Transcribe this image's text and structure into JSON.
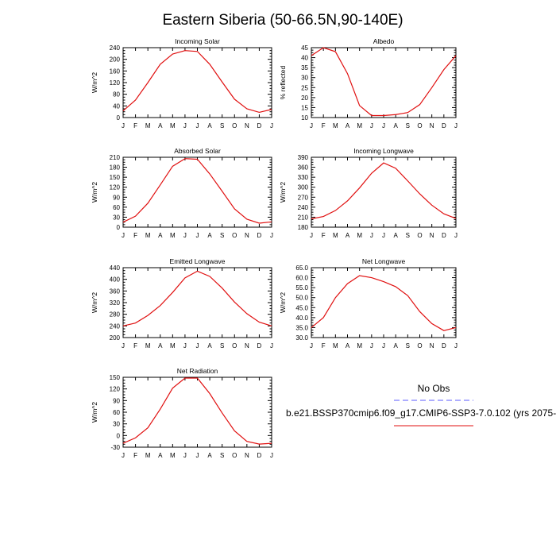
{
  "figure": {
    "title": "Eastern Siberia (50-66.5N,90-140E)"
  },
  "legend": {
    "items": [
      {
        "label": "No Obs",
        "color": "#5b5bff",
        "style": "dashed"
      },
      {
        "label": "b.e21.BSSP370cmip6.f09_g17.CMIP6-SSP3-7.0.102 (yrs 2075-",
        "color": "#e01010",
        "style": "solid"
      }
    ]
  },
  "colors": {
    "model_line": "#e01010",
    "axis": "#000000"
  },
  "chart_data": [
    {
      "type": "line",
      "title": "Incoming Solar",
      "ylabel": "W/m^2",
      "categories": [
        "J",
        "F",
        "M",
        "A",
        "M",
        "J",
        "J",
        "A",
        "S",
        "O",
        "N",
        "D",
        "J"
      ],
      "ylim": [
        0,
        240
      ],
      "yticks": [
        "0",
        "40",
        "80",
        "120",
        "160",
        "200",
        "240"
      ],
      "series": [
        {
          "values": [
            23,
            60,
            120,
            183,
            218,
            230,
            227,
            183,
            122,
            63,
            30,
            18,
            28
          ]
        }
      ]
    },
    {
      "type": "line",
      "title": "Albedo",
      "ylabel": "% reflected",
      "categories": [
        "J",
        "F",
        "M",
        "A",
        "M",
        "J",
        "J",
        "A",
        "S",
        "O",
        "N",
        "D",
        "J"
      ],
      "ylim": [
        10,
        45
      ],
      "yticks": [
        "10",
        "15",
        "20",
        "25",
        "30",
        "35",
        "40",
        "45"
      ],
      "series": [
        {
          "values": [
            41,
            45,
            43,
            32,
            16,
            11,
            11,
            11.5,
            12.5,
            16.5,
            25,
            34,
            41
          ]
        }
      ]
    },
    {
      "type": "line",
      "title": "Absorbed Solar",
      "ylabel": "W/m^2",
      "categories": [
        "J",
        "F",
        "M",
        "A",
        "M",
        "J",
        "J",
        "A",
        "S",
        "O",
        "N",
        "D",
        "J"
      ],
      "ylim": [
        0,
        210
      ],
      "yticks": [
        "0",
        "30",
        "60",
        "90",
        "120",
        "150",
        "180",
        "210"
      ],
      "series": [
        {
          "values": [
            15,
            33,
            72,
            127,
            183,
            206,
            204,
            160,
            108,
            55,
            24,
            12,
            16
          ]
        }
      ]
    },
    {
      "type": "line",
      "title": "Incoming Longwave",
      "ylabel": "W/m^2",
      "categories": [
        "J",
        "F",
        "M",
        "A",
        "M",
        "J",
        "J",
        "A",
        "S",
        "O",
        "N",
        "D",
        "J"
      ],
      "ylim": [
        180,
        390
      ],
      "yticks": [
        "180",
        "210",
        "240",
        "270",
        "300",
        "330",
        "360",
        "390"
      ],
      "series": [
        {
          "values": [
            205,
            212,
            230,
            259,
            298,
            342,
            373,
            357,
            319,
            280,
            246,
            220,
            206
          ]
        }
      ]
    },
    {
      "type": "line",
      "title": "Emitted Longwave",
      "ylabel": "W/m^2",
      "categories": [
        "J",
        "F",
        "M",
        "A",
        "M",
        "J",
        "J",
        "A",
        "S",
        "O",
        "N",
        "D",
        "J"
      ],
      "ylim": [
        200,
        440
      ],
      "yticks": [
        "200",
        "240",
        "280",
        "320",
        "360",
        "400",
        "440"
      ],
      "series": [
        {
          "values": [
            240,
            250,
            276,
            310,
            355,
            405,
            428,
            410,
            370,
            322,
            282,
            253,
            240
          ]
        }
      ]
    },
    {
      "type": "line",
      "title": "Net Longwave",
      "ylabel": "W/m^2",
      "categories": [
        "J",
        "F",
        "M",
        "A",
        "M",
        "J",
        "J",
        "A",
        "S",
        "O",
        "N",
        "D",
        "J"
      ],
      "ylim": [
        30,
        65
      ],
      "yticks": [
        "30.0",
        "35.0",
        "40.0",
        "45.0",
        "50.0",
        "55.0",
        "60.0",
        "65.0"
      ],
      "series": [
        {
          "values": [
            35,
            40,
            50,
            57,
            61,
            60,
            58,
            55.5,
            51,
            43,
            37,
            33.5,
            35
          ]
        }
      ]
    },
    {
      "type": "line",
      "title": "Net Radiation",
      "ylabel": "W/m^2",
      "categories": [
        "J",
        "F",
        "M",
        "A",
        "M",
        "J",
        "J",
        "A",
        "S",
        "O",
        "N",
        "D",
        "J"
      ],
      "ylim": [
        -30,
        150
      ],
      "yticks": [
        "-30",
        "0",
        "30",
        "60",
        "90",
        "120",
        "150"
      ],
      "series": [
        {
          "values": [
            -20,
            -6,
            20,
            68,
            122,
            148,
            148,
            108,
            58,
            12,
            -15,
            -22,
            -20
          ]
        }
      ]
    }
  ]
}
